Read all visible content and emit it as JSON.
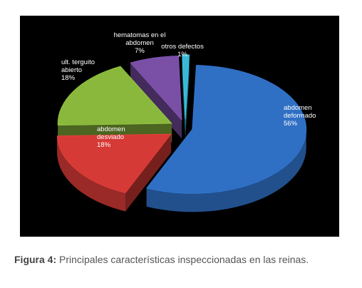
{
  "chart_data": {
    "type": "pie",
    "style": "3d-exploded",
    "slices": [
      {
        "label_lines": [
          "abdomen",
          "deformado",
          "56%"
        ],
        "value": 56,
        "color": "#2f6fc4"
      },
      {
        "label_lines": [
          "abdomen",
          "desviado",
          "18%"
        ],
        "value": 18,
        "color": "#d63a36"
      },
      {
        "label_lines": [
          "ult. terguito",
          "abierto",
          "18%"
        ],
        "value": 18,
        "color": "#8ab83c"
      },
      {
        "label_lines": [
          "hematomas en el",
          "abdomen",
          "7%"
        ],
        "value": 7,
        "color": "#7a4fa6"
      },
      {
        "label_lines": [
          "otros defectos",
          "1%"
        ],
        "value": 1,
        "color": "#3ab8d8"
      }
    ]
  },
  "caption": {
    "lead": "Figura 4:",
    "text": " Principales características inspeccionadas en las reinas."
  }
}
